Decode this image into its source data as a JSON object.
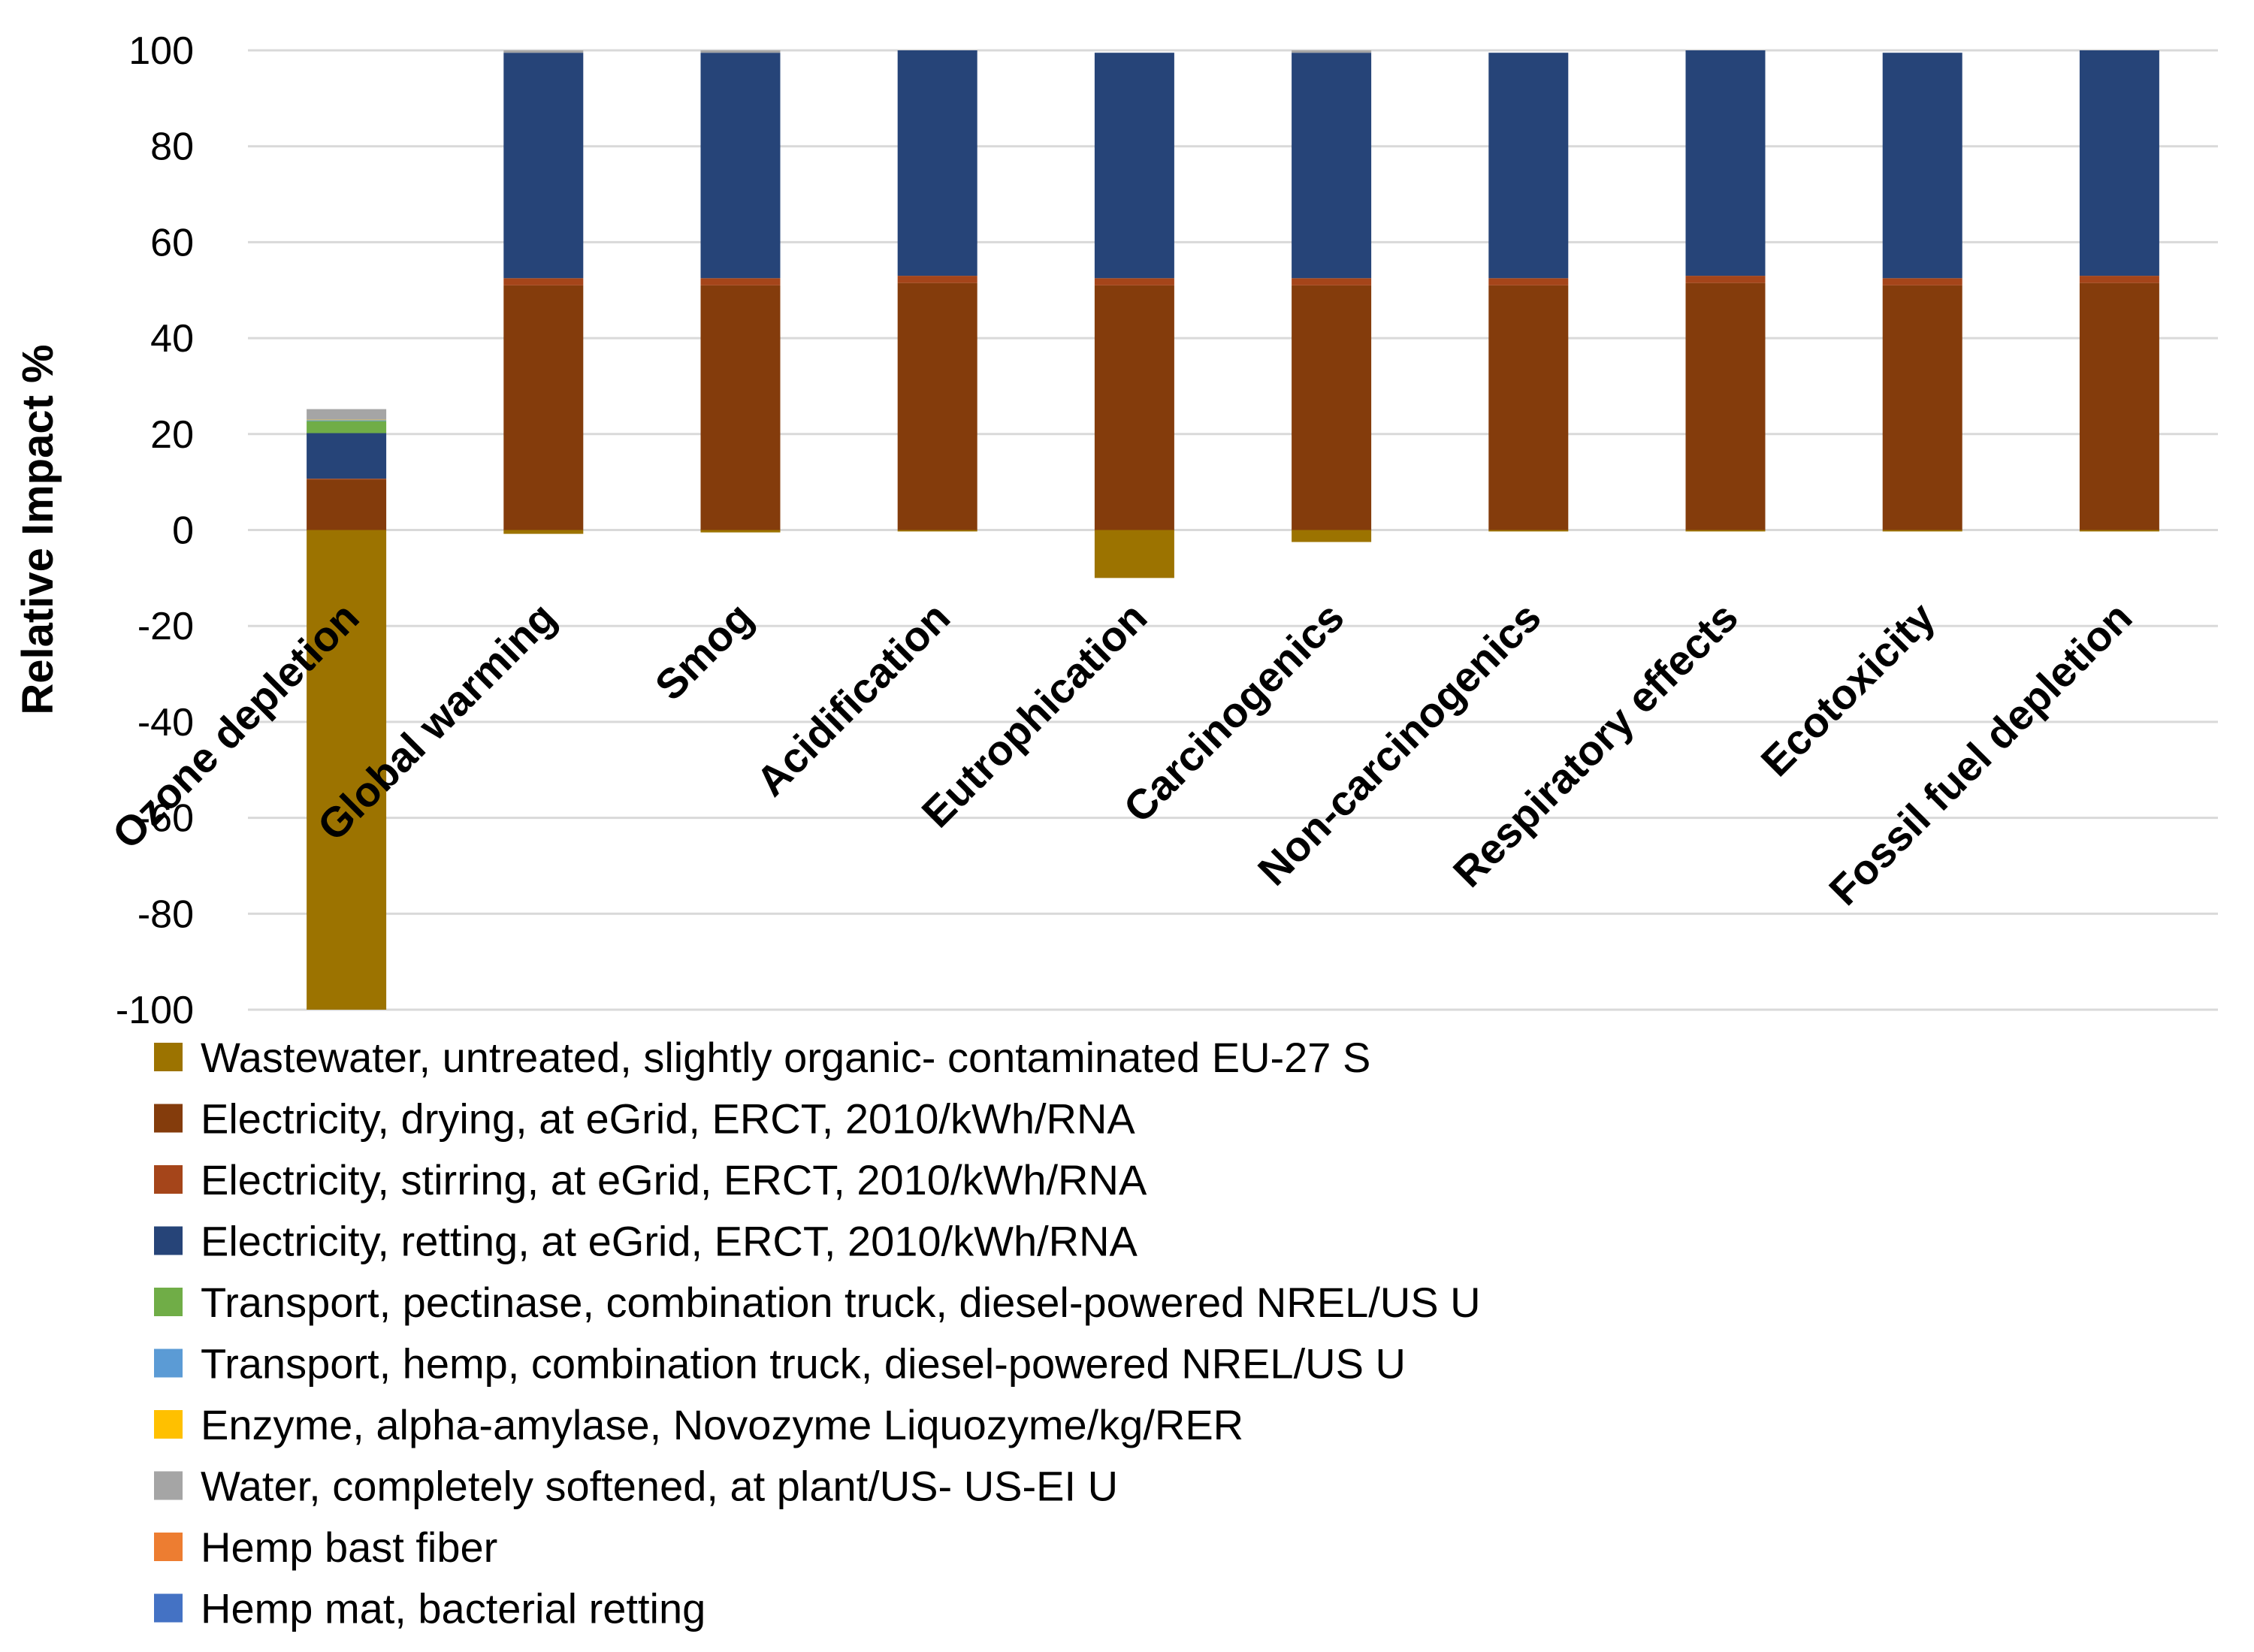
{
  "chart_data": {
    "type": "bar",
    "stacked": true,
    "title": "",
    "xlabel": "",
    "ylabel": "Relative Impact %",
    "ylim": [
      -100,
      100
    ],
    "yticks": [
      100,
      80,
      60,
      40,
      20,
      0,
      -20,
      -40,
      -60,
      -80,
      -100
    ],
    "grid": true,
    "legend_position": "bottom",
    "categories": [
      "Ozone depletion",
      "Global warming",
      "Smog",
      "Acidification",
      "Eutrophication",
      "Carcinogenics",
      "Non-carcinogenics",
      "Respiratory effects",
      "Ecotoxicity",
      "Fossil fuel depletion"
    ],
    "series": [
      {
        "name": "Wastewater, untreated, slightly organic- contaminated EU-27 S",
        "color": "#9C7300",
        "values": [
          -100,
          -0.8,
          -0.5,
          -0.3,
          -10,
          -2.5,
          -0.3,
          -0.3,
          -0.3,
          -0.3
        ]
      },
      {
        "name": "Electricity, drying, at eGrid, ERCT, 2010/kWh/RNA",
        "color": "#843C0C",
        "values": [
          10.5,
          51,
          51,
          51.5,
          51,
          51,
          51,
          51.5,
          51,
          51.5
        ]
      },
      {
        "name": "Electricity, stirring, at eGrid, ERCT, 2010/kWh/RNA",
        "color": "#A5451A",
        "values": [
          0.2,
          1.5,
          1.5,
          1.5,
          1.5,
          1.5,
          1.5,
          1.5,
          1.5,
          1.5
        ]
      },
      {
        "name": "Electricity, retting, at eGrid, ERCT, 2010/kWh/RNA",
        "color": "#264478",
        "values": [
          9.5,
          47,
          47,
          47,
          47,
          47,
          47,
          47,
          47,
          47
        ]
      },
      {
        "name": "Transport, pectinase, combination truck, diesel-powered NREL/US U",
        "color": "#70AD47",
        "values": [
          2.5,
          0,
          0,
          0,
          0,
          0,
          0,
          0,
          0,
          0
        ]
      },
      {
        "name": "Transport, hemp, combination truck, diesel-powered NREL/US U",
        "color": "#5B9BD5",
        "values": [
          0.2,
          0,
          0,
          0,
          0,
          0,
          0,
          0,
          0,
          0
        ]
      },
      {
        "name": "Enzyme, alpha-amylase, Novozyme Liquozyme/kg/RER",
        "color": "#FFC000",
        "values": [
          0.1,
          0,
          0,
          0,
          0,
          0,
          0,
          0,
          0,
          0
        ]
      },
      {
        "name": "Water, completely softened, at plant/US- US-EI U",
        "color": "#A5A5A5",
        "values": [
          2.2,
          0.5,
          0.5,
          0,
          0,
          0.5,
          0,
          0,
          0,
          0
        ]
      },
      {
        "name": "Hemp bast fiber",
        "color": "#ED7D31",
        "values": [
          0,
          0,
          0,
          0,
          0,
          0,
          0,
          0,
          0,
          0
        ]
      },
      {
        "name": "Hemp mat, bacterial retting",
        "color": "#4472C4",
        "values": [
          0,
          0,
          0,
          0,
          0,
          0,
          0,
          0,
          0,
          0
        ]
      }
    ]
  }
}
